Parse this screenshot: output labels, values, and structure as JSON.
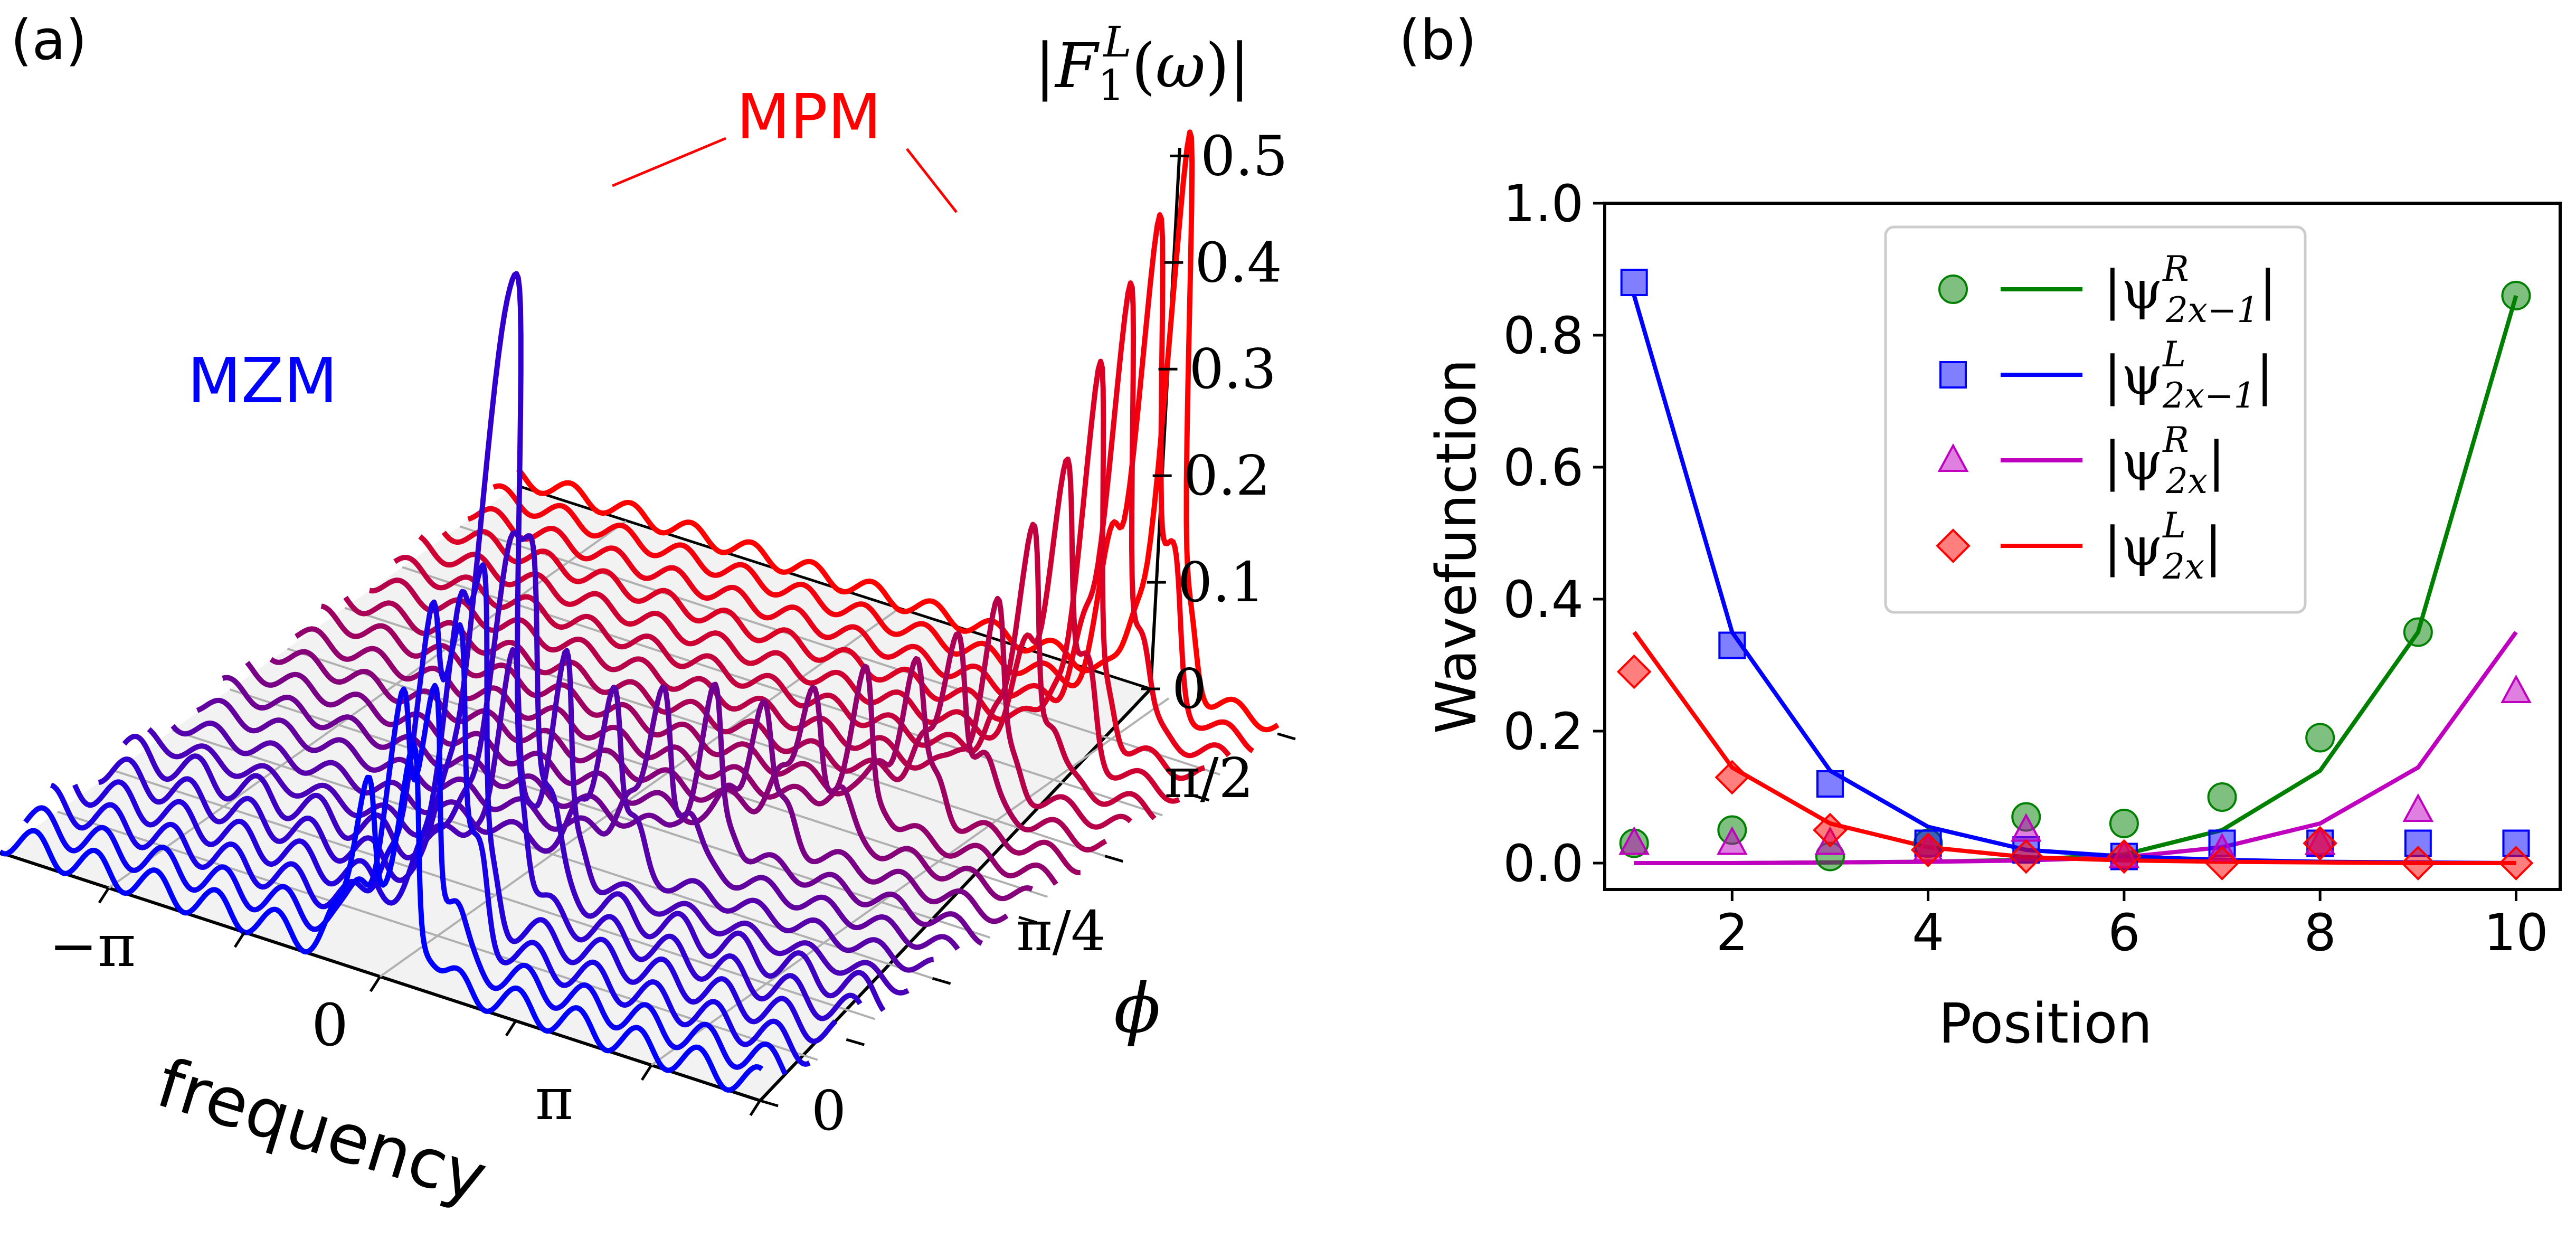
{
  "panels": {
    "a": {
      "tag": "(a)"
    },
    "b": {
      "tag": "(b)"
    }
  },
  "chart_data": [
    {
      "type": "line",
      "projection": "3d-waterfall",
      "zlabel": "|F_1^L(ω)|",
      "xlabel": "frequency",
      "ylabel": "ϕ",
      "x_ticks": [
        "−π",
        "0",
        "π"
      ],
      "y_ticks": [
        "0",
        "π/4",
        "π/2"
      ],
      "z_ticks": [
        "0",
        "0.1",
        "0.2",
        "0.3",
        "0.4",
        "0.5"
      ],
      "xlim": [
        -4.4,
        4.4
      ],
      "ylim": [
        0,
        1.5708
      ],
      "zlim": [
        0,
        0.5
      ],
      "phi_values": [
        0,
        0.0748,
        0.1496,
        0.2244,
        0.2992,
        0.374,
        0.4488,
        0.5236,
        0.5984,
        0.6732,
        0.748,
        0.8228,
        0.8976,
        0.9724,
        1.0472,
        1.122,
        1.1968,
        1.2716,
        1.3464,
        1.4212,
        1.496,
        1.5708
      ],
      "peak_heights": [
        0.19,
        0.21,
        0.23,
        0.27,
        0.41,
        0.24,
        0.2,
        0.17,
        0.15,
        0.14,
        0.13,
        0.13,
        0.13,
        0.14,
        0.15,
        0.17,
        0.22,
        0.28,
        0.34,
        0.4,
        0.46,
        0.51
      ],
      "peak_positions": [
        0.25,
        0.2,
        0.15,
        0.12,
        0.1,
        0.12,
        0.3,
        0.6,
        0.9,
        1.2,
        1.5,
        1.8,
        2.1,
        2.4,
        2.6,
        2.75,
        2.85,
        2.92,
        2.97,
        3.0,
        3.02,
        3.04
      ],
      "background_level": 0.03,
      "color_start": "#0000ff",
      "color_end": "#ff0000",
      "annotations": [
        {
          "text": "MZM",
          "color": "#0000ff"
        },
        {
          "text": "MPM",
          "color": "#ff0000"
        }
      ]
    },
    {
      "type": "scatter",
      "xlabel": "Position",
      "ylabel": "Wavefunction",
      "xlim": [
        0.7,
        10.45
      ],
      "ylim": [
        -0.04,
        1.0
      ],
      "x_ticks": [
        2,
        4,
        6,
        8,
        10
      ],
      "y_ticks": [
        "0.0",
        "0.2",
        "0.4",
        "0.6",
        "0.8",
        "1.0"
      ],
      "legend_position": "top-center",
      "x": [
        1,
        2,
        3,
        4,
        5,
        6,
        7,
        8,
        9,
        10
      ],
      "series": [
        {
          "name": "|ψ^R_{2x−1}|",
          "legend_main": "|ψ",
          "legend_sup": "R",
          "legend_sub": "2x−1",
          "legend_end": "|",
          "marker": "circle",
          "color": "#008000",
          "points": [
            0.03,
            0.05,
            0.01,
            0.03,
            0.07,
            0.06,
            0.1,
            0.19,
            0.35,
            0.86
          ],
          "line": [
            0.0,
            0.0,
            0.001,
            0.002,
            0.005,
            0.013,
            0.05,
            0.14,
            0.35,
            0.86
          ]
        },
        {
          "name": "|ψ^L_{2x−1}|",
          "legend_main": "|ψ",
          "legend_sup": "L",
          "legend_sub": "2x−1",
          "legend_end": "|",
          "marker": "square",
          "color": "#0000ff",
          "points": [
            0.88,
            0.33,
            0.12,
            0.03,
            0.02,
            0.01,
            0.03,
            0.03,
            0.03,
            0.03
          ],
          "line": [
            0.86,
            0.35,
            0.14,
            0.055,
            0.02,
            0.01,
            0.005,
            0.002,
            0.001,
            0.0
          ]
        },
        {
          "name": "|ψ^R_{2x}|",
          "legend_main": "|ψ",
          "legend_sup": "R",
          "legend_sub": "2x",
          "legend_end": "|",
          "marker": "triangle",
          "color": "#bf00bf",
          "points": [
            0.03,
            0.03,
            0.03,
            0.02,
            0.05,
            0.01,
            0.02,
            0.03,
            0.08,
            0.26
          ],
          "line": [
            0.0,
            0.0,
            0.001,
            0.002,
            0.004,
            0.009,
            0.024,
            0.06,
            0.145,
            0.35
          ]
        },
        {
          "name": "|ψ^L_{2x}|",
          "legend_main": "|ψ",
          "legend_sup": "L",
          "legend_sub": "2x",
          "legend_end": "|",
          "marker": "diamond",
          "color": "#ff0000",
          "points": [
            0.29,
            0.13,
            0.05,
            0.02,
            0.01,
            0.01,
            0.0,
            0.03,
            0.0,
            0.0
          ],
          "line": [
            0.35,
            0.145,
            0.06,
            0.024,
            0.009,
            0.004,
            0.002,
            0.001,
            0.0,
            0.0
          ]
        }
      ]
    }
  ]
}
